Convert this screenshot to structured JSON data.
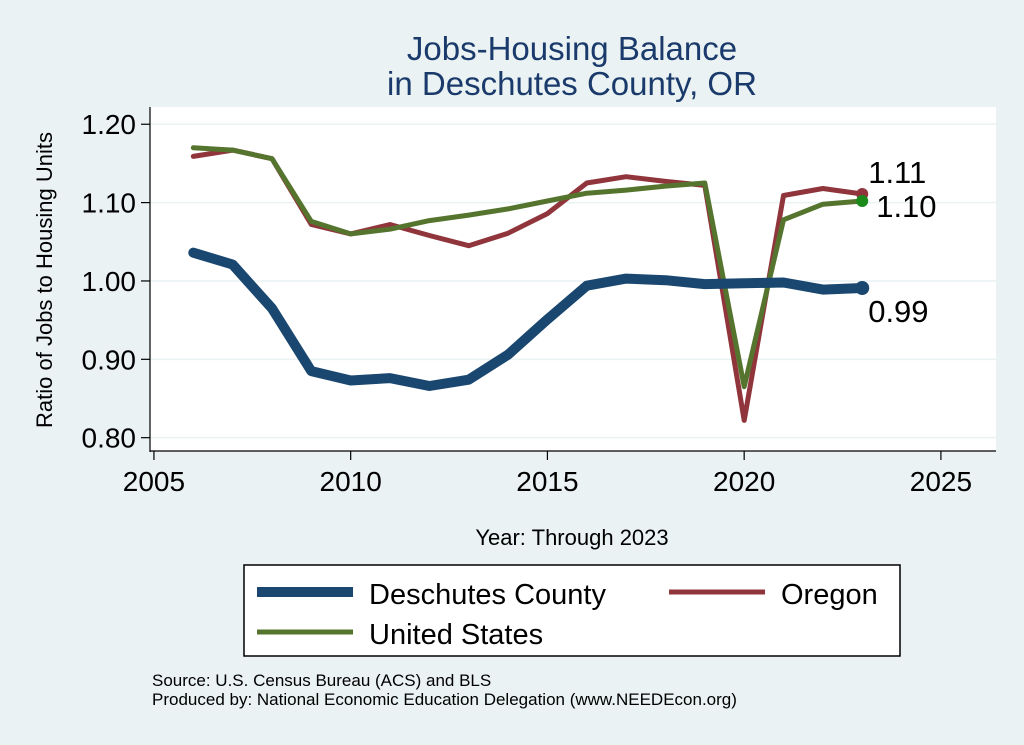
{
  "chart_data": {
    "type": "line",
    "title": [
      "Jobs-Housing Balance",
      "in Deschutes County, OR"
    ],
    "xlabel": "Year: Through 2023",
    "ylabel": "Ratio of Jobs to Housing Units",
    "xlim": [
      2004.9,
      2026.4
    ],
    "ylim": [
      0.783,
      1.222
    ],
    "x_ticks": [
      2005,
      2010,
      2015,
      2020,
      2025
    ],
    "y_ticks": [
      0.8,
      0.9,
      1.0,
      1.1,
      1.2
    ],
    "y_tick_labels": [
      "0.80",
      "0.90",
      "1.00",
      "1.10",
      "1.20"
    ],
    "x_tick_labels": [
      "2005",
      "2010",
      "2015",
      "2020",
      "2025"
    ],
    "grid": true,
    "legend_position": "bottom",
    "x": [
      2006,
      2007,
      2008,
      2009,
      2010,
      2011,
      2012,
      2013,
      2014,
      2015,
      2016,
      2017,
      2018,
      2019,
      2020,
      2021,
      2022,
      2023
    ],
    "series": [
      {
        "name": "Deschutes County",
        "color": "#1a476f",
        "values": [
          1.036,
          1.021,
          0.965,
          0.885,
          0.873,
          0.876,
          0.866,
          0.874,
          0.906,
          0.951,
          0.994,
          1.003,
          1.001,
          0.996,
          0.997,
          0.998,
          0.989,
          0.991
        ],
        "end_label": "0.99"
      },
      {
        "name": "Oregon",
        "color": "#90353b",
        "values": [
          1.159,
          1.167,
          1.156,
          1.072,
          1.06,
          1.072,
          1.058,
          1.045,
          1.061,
          1.086,
          1.125,
          1.133,
          1.127,
          1.122,
          0.822,
          1.109,
          1.118,
          1.111
        ],
        "end_label": "1.11"
      },
      {
        "name": "United States",
        "color": "#55752f",
        "end_marker_color": "#1a8a1a",
        "values": [
          1.17,
          1.167,
          1.156,
          1.076,
          1.06,
          1.066,
          1.077,
          1.084,
          1.092,
          1.102,
          1.112,
          1.116,
          1.121,
          1.125,
          0.865,
          1.078,
          1.098,
          1.102
        ],
        "end_label": "1.10"
      }
    ]
  },
  "notes": {
    "source": "Source: U.S. Census Bureau (ACS) and BLS",
    "produced_by": "Produced by: National Economic Education Delegation (www.NEEDEcon.org)"
  }
}
